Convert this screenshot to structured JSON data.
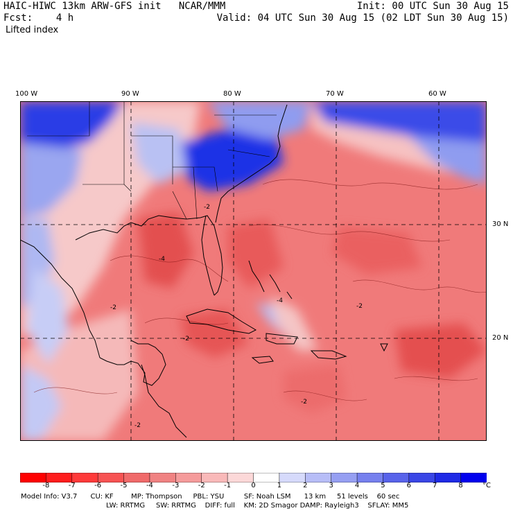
{
  "header": {
    "model_title": "HAIC-HIWC 13km ARW-GFS init   NCAR/MMM",
    "fcst": "Fcst:    4 h",
    "field_name": "Lifted index",
    "init": "Init: 00 UTC Sun 30 Aug 15",
    "valid": "Valid: 04 UTC Sun 30 Aug 15 (02 LDT Sun 30 Aug 15)"
  },
  "map": {
    "lon_labels": [
      "100 W",
      "90 W",
      "80 W",
      "70 W",
      "60 W"
    ],
    "lat_labels": [
      "30 N",
      "20 N"
    ],
    "contour_labels": [
      "-2",
      "-4",
      "-2",
      "-2",
      "-4",
      "-2",
      "-2",
      "-2"
    ],
    "colors": {
      "strong_stable": "#1a2ee6",
      "stable": "#8a9bf0",
      "neutral": "#f5e6e6",
      "unstable_light": "#f5a3a3",
      "unstable": "#ee6e6e",
      "unstable_strong": "#e24545"
    }
  },
  "colorbar": {
    "tick_labels": [
      "-8",
      "-7",
      "-6",
      "-5",
      "-4",
      "-3",
      "-2",
      "-1",
      "0",
      "1",
      "2",
      "3",
      "4",
      "5",
      "6",
      "7",
      "8"
    ],
    "unit": "°C",
    "colors": [
      "#ff0000",
      "#ff1d1d",
      "#ff3a3a",
      "#f75353",
      "#f06a6a",
      "#f08282",
      "#f59b9b",
      "#f9b9b9",
      "#fcd8d8",
      "#ffffff",
      "#d6dafb",
      "#b7bdf7",
      "#969ff2",
      "#7680ee",
      "#5863ea",
      "#3a46e6",
      "#1f2ae6",
      "#0000ee"
    ]
  },
  "footer": {
    "line1": "Model Info: V3.7      CU: KF        MP: Thompson     PBL: YSU         SF: Noah LSM      13 km     51 levels    60 sec",
    "line2": "LW: RRTMG     SW: RRTMG    DIFF: full    KM: 2D Smagor DAMP: Rayleigh3    SFLAY: MM5"
  }
}
